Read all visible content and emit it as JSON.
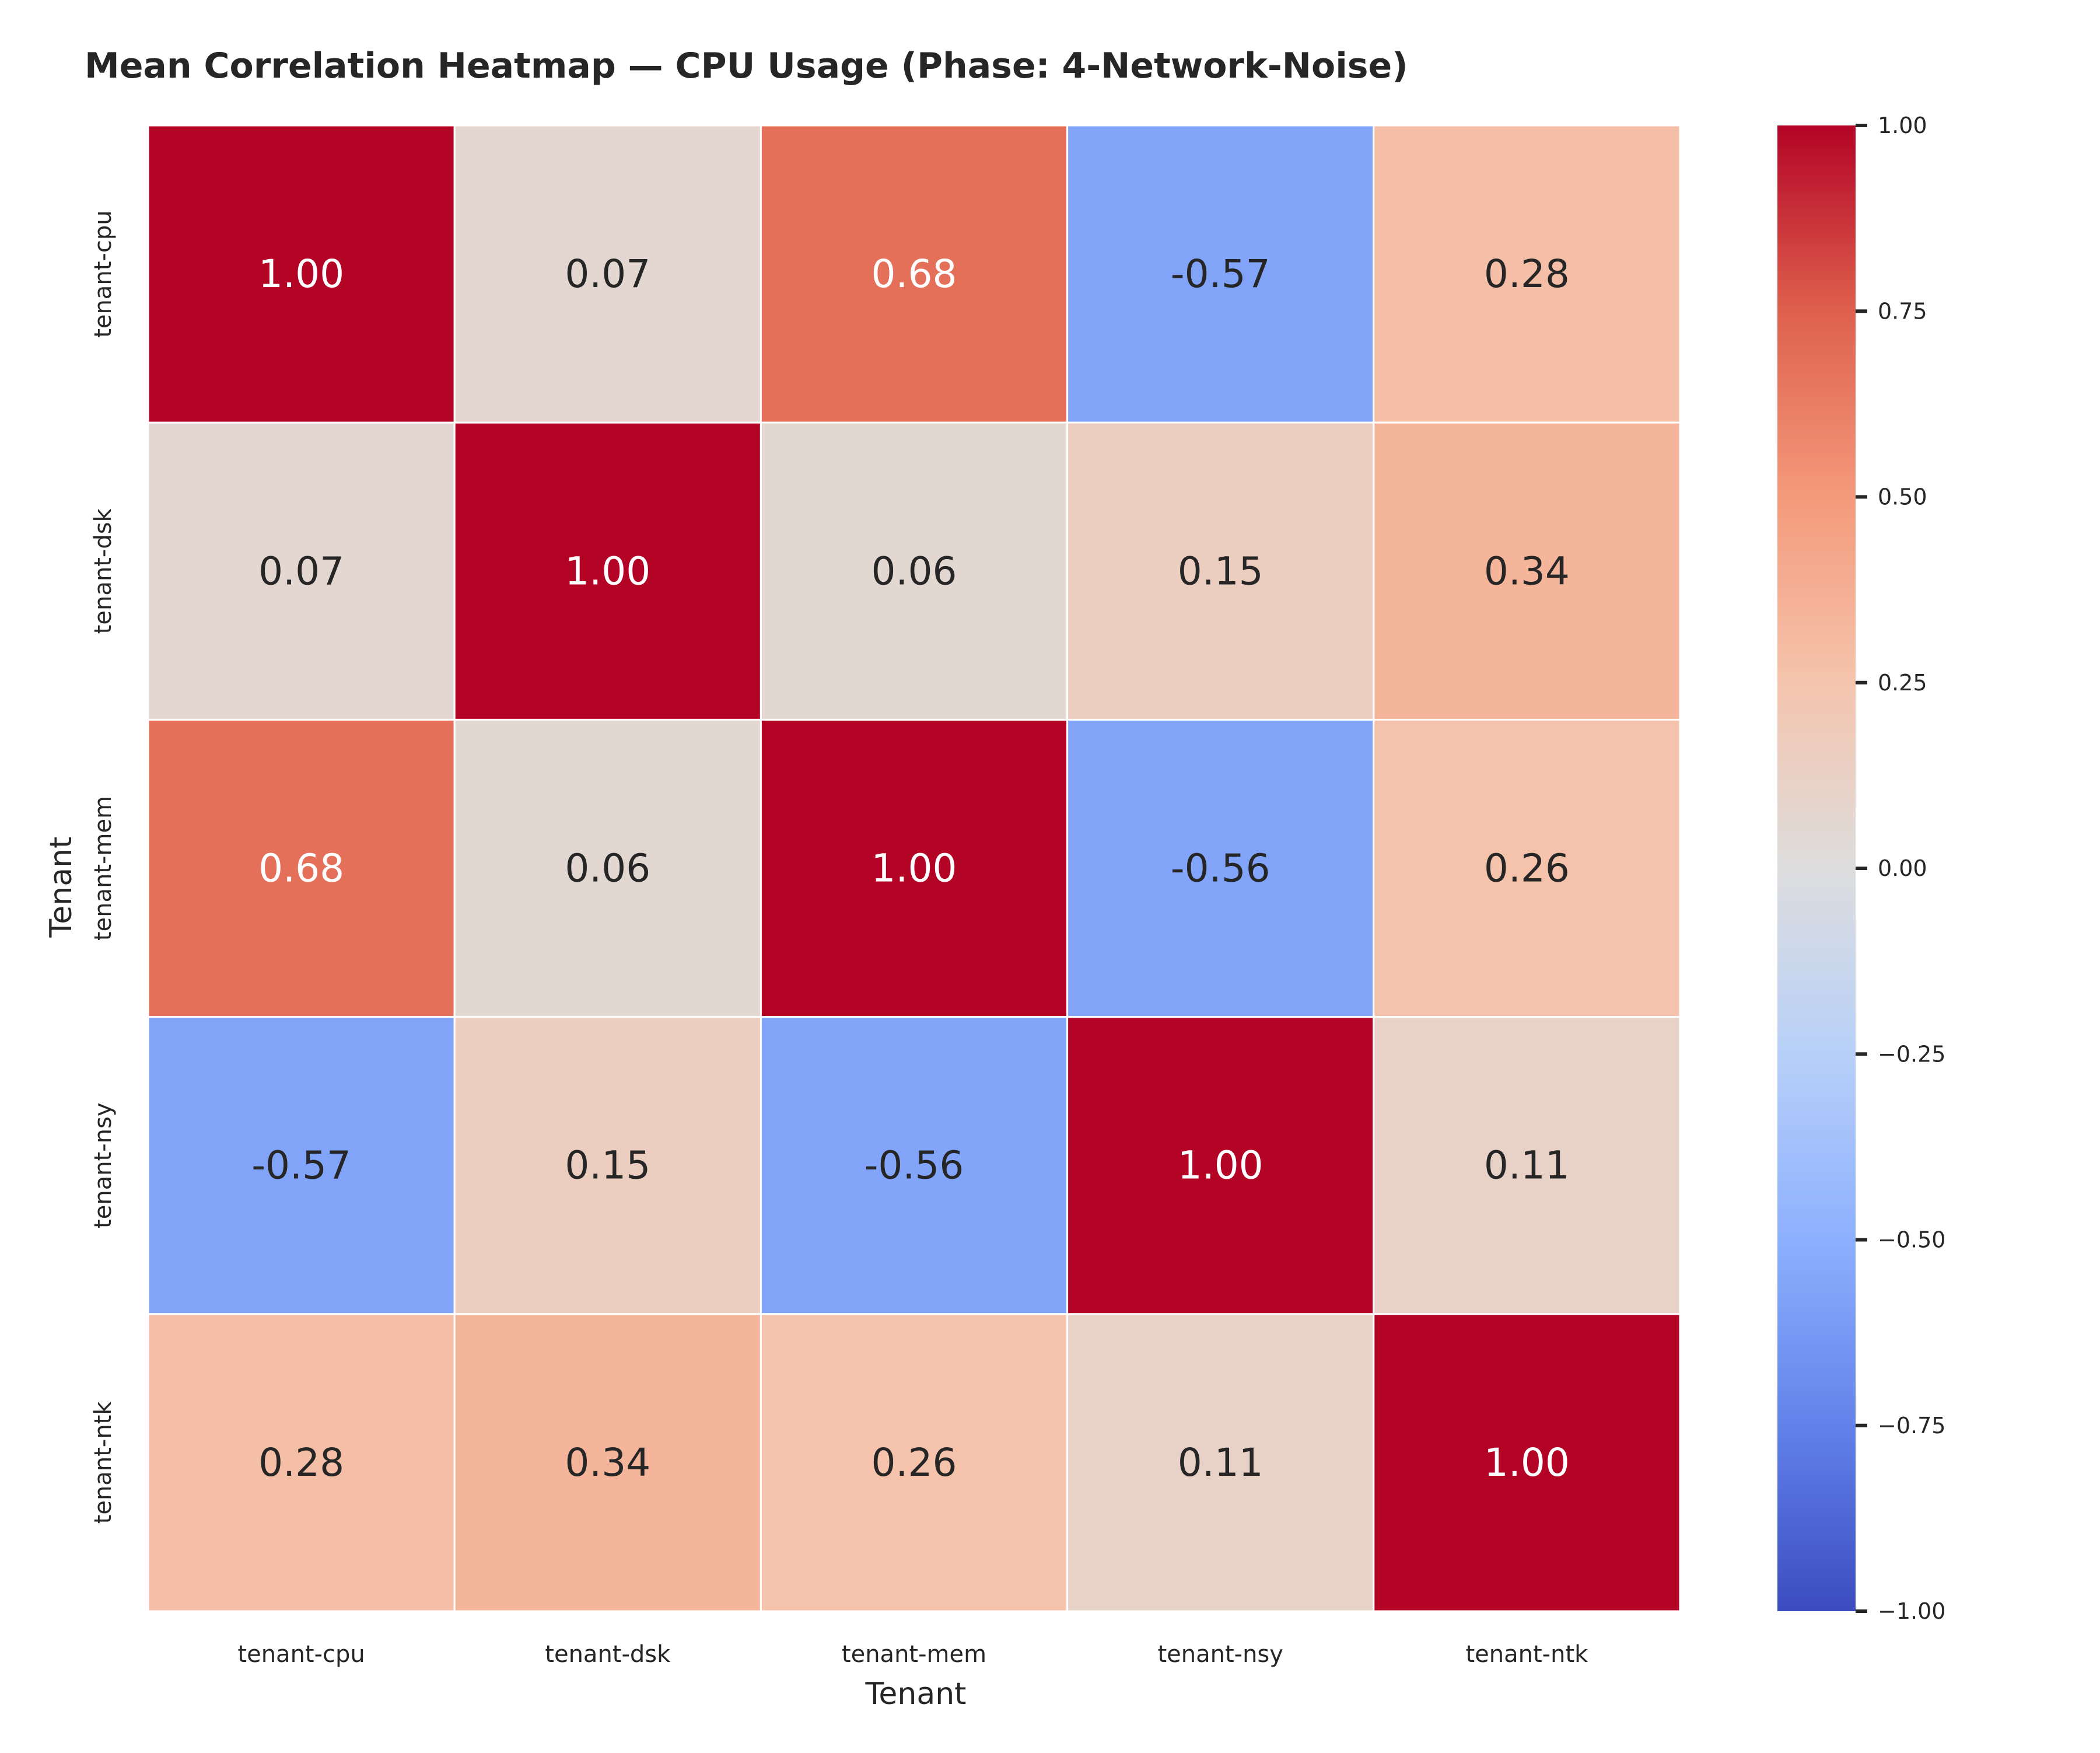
{
  "chart_data": {
    "type": "heatmap",
    "title": "Mean Correlation Heatmap — CPU Usage (Phase: 4-Network-Noise)",
    "xlabel": "Tenant",
    "ylabel": "Tenant",
    "x_categories": [
      "tenant-cpu",
      "tenant-dsk",
      "tenant-mem",
      "tenant-nsy",
      "tenant-ntk"
    ],
    "y_categories": [
      "tenant-cpu",
      "tenant-dsk",
      "tenant-mem",
      "tenant-nsy",
      "tenant-ntk"
    ],
    "values": [
      [
        1.0,
        0.07,
        0.68,
        -0.57,
        0.28
      ],
      [
        0.07,
        1.0,
        0.06,
        0.15,
        0.34
      ],
      [
        0.68,
        0.06,
        1.0,
        -0.56,
        0.26
      ],
      [
        -0.57,
        0.15,
        -0.56,
        1.0,
        0.11
      ],
      [
        0.28,
        0.34,
        0.26,
        0.11,
        1.0
      ]
    ],
    "cell_labels": [
      [
        "1.00",
        "0.07",
        "0.68",
        "-0.57",
        "0.28"
      ],
      [
        "0.07",
        "1.00",
        "0.06",
        "0.15",
        "0.34"
      ],
      [
        "0.68",
        "0.06",
        "1.00",
        "-0.56",
        "0.26"
      ],
      [
        "-0.57",
        "0.15",
        "-0.56",
        "1.00",
        "0.11"
      ],
      [
        "0.28",
        "0.34",
        "0.26",
        "0.11",
        "1.00"
      ]
    ],
    "colorbar": {
      "colormap": "coolwarm",
      "range": [
        -1.0,
        1.0
      ],
      "ticks": [
        1.0,
        0.75,
        0.5,
        0.25,
        0.0,
        -0.25,
        -0.5,
        -0.75,
        -1.0
      ],
      "tick_labels": [
        "1.00",
        "0.75",
        "0.50",
        "0.25",
        "0.00",
        "−0.25",
        "−0.50",
        "−0.75",
        "−1.00"
      ]
    },
    "grid": false,
    "colors": {
      "low": "#3b4cc0",
      "mid": "#dddddd",
      "high": "#b40426",
      "cell_border": "#ffffff",
      "text_dark": "#262626",
      "text_light": "#ffffff"
    }
  }
}
